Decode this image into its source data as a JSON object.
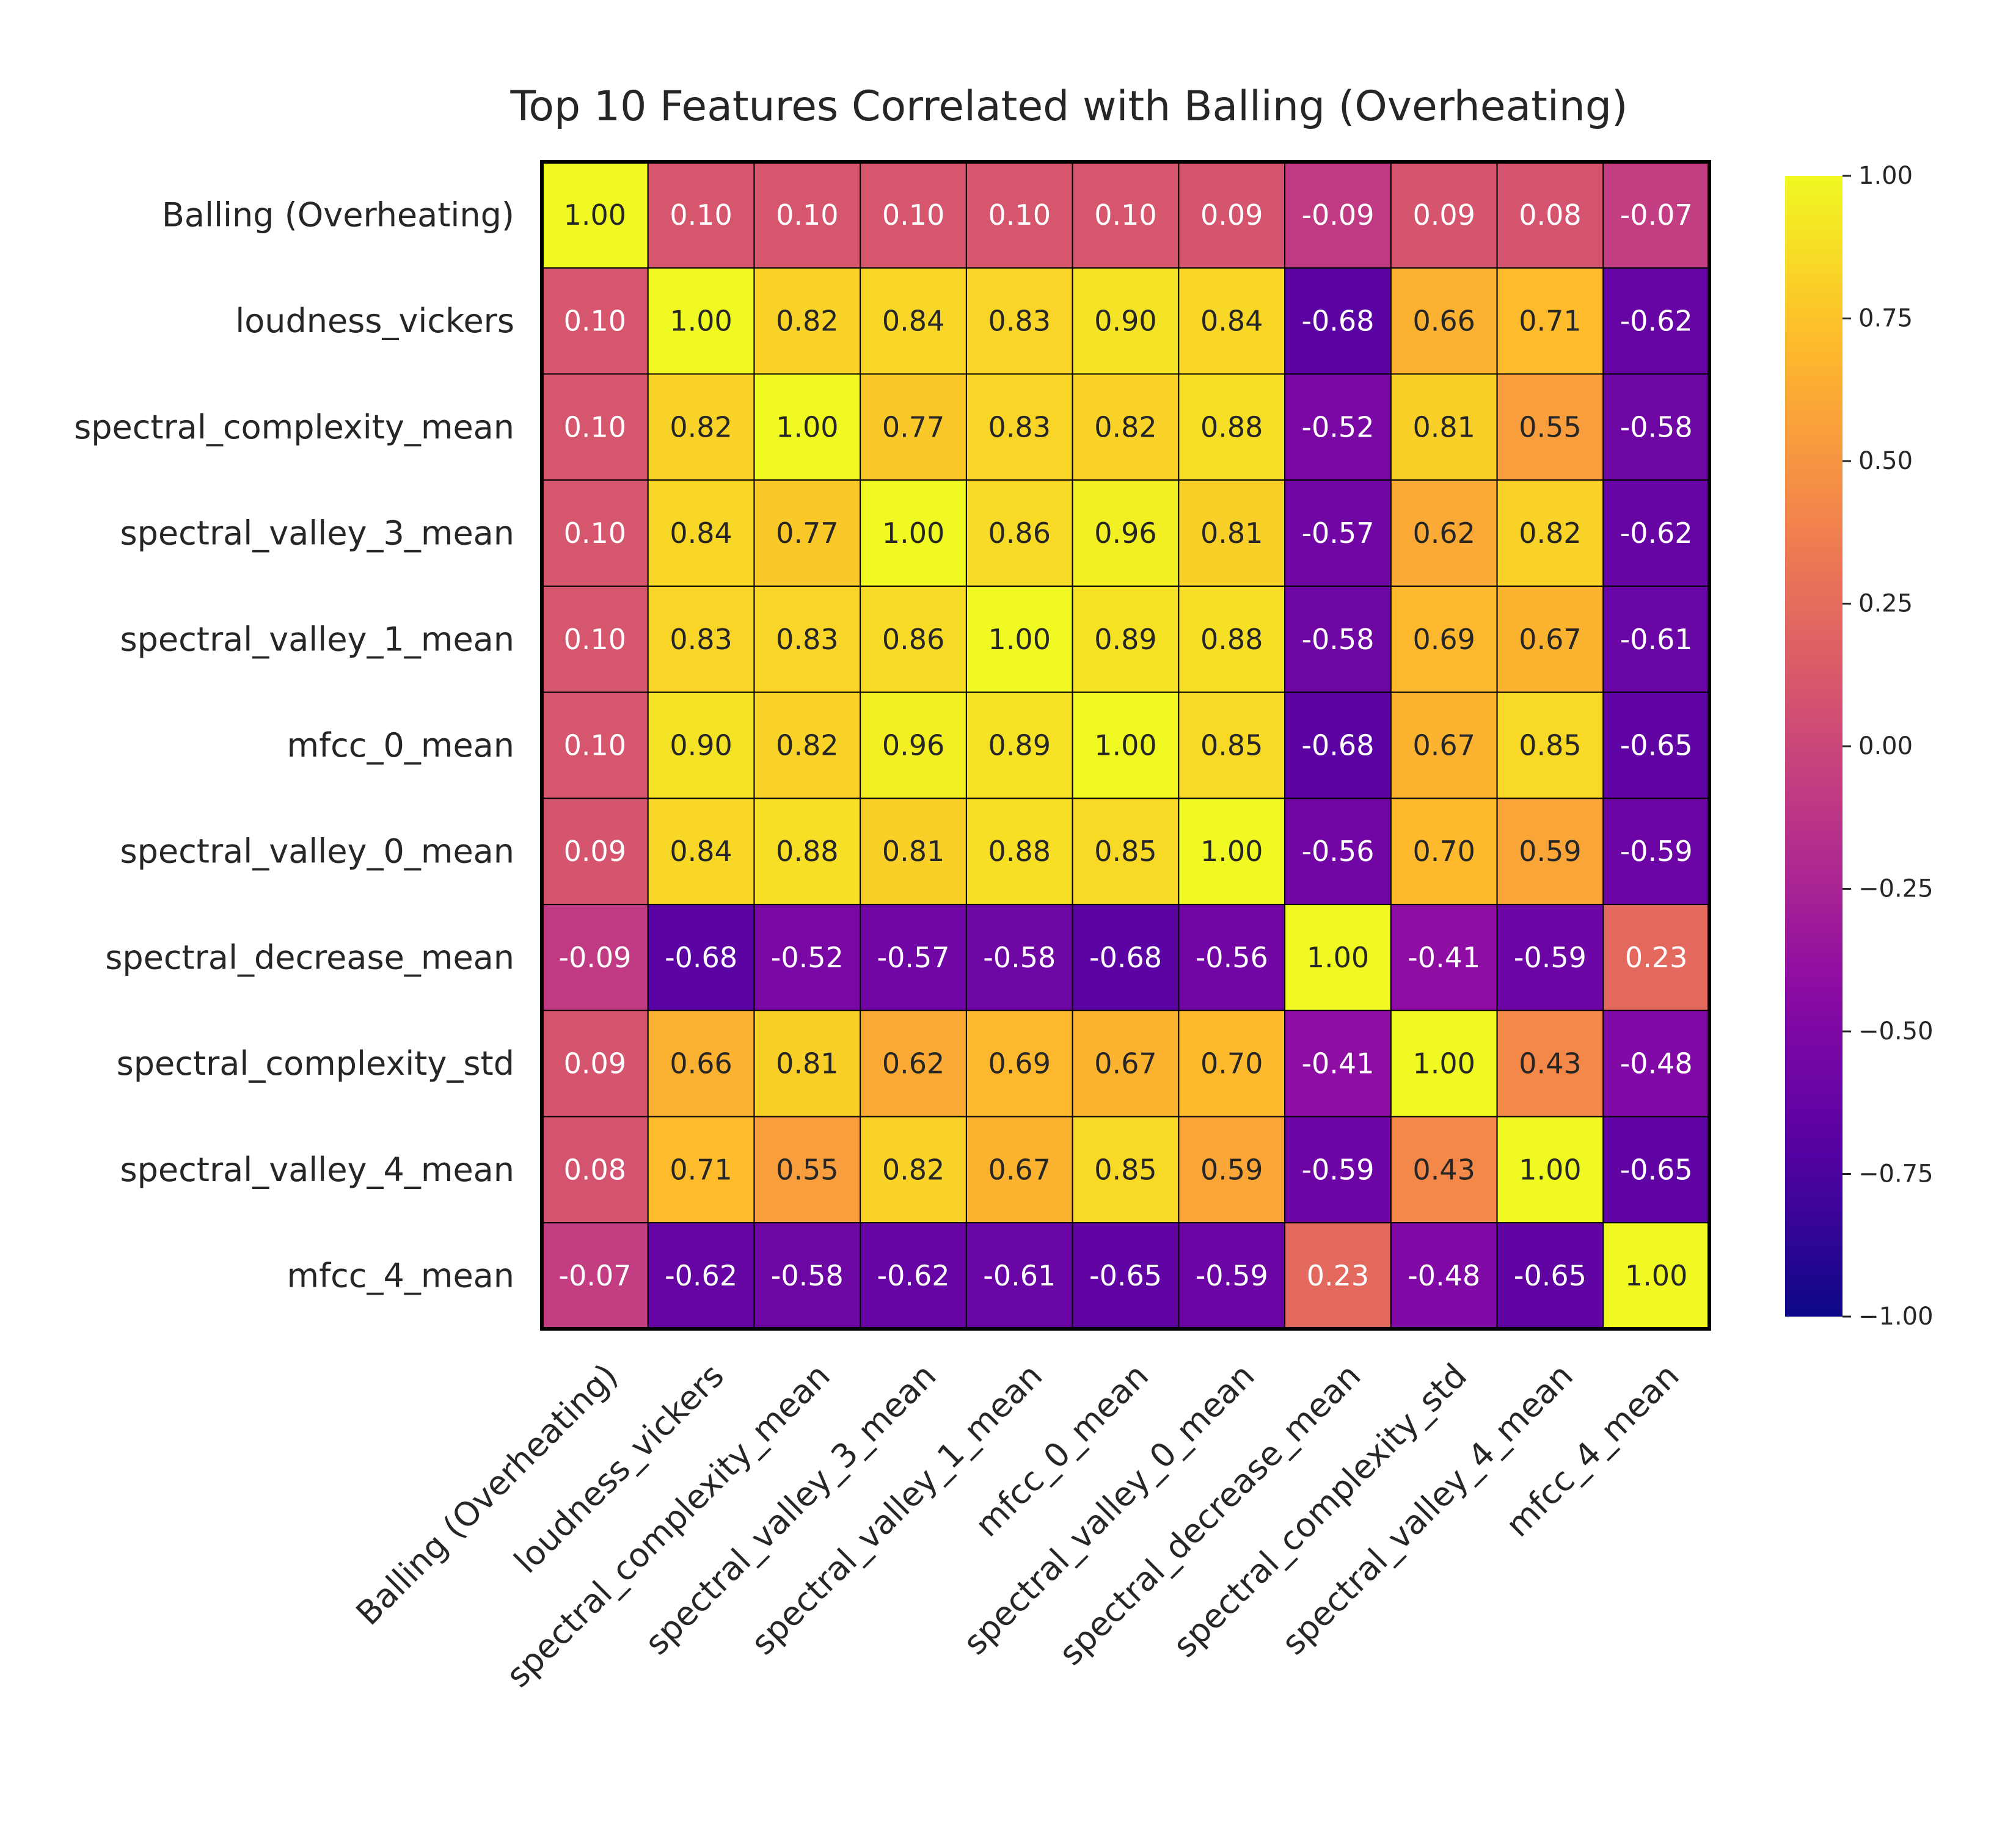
{
  "chart_data": {
    "type": "heatmap",
    "title": "Top 10 Features Correlated with Balling (Overheating)",
    "labels": [
      "Balling (Overheating)",
      "loudness_vickers",
      "spectral_complexity_mean",
      "spectral_valley_3_mean",
      "spectral_valley_1_mean",
      "mfcc_0_mean",
      "spectral_valley_0_mean",
      "spectral_decrease_mean",
      "spectral_complexity_std",
      "spectral_valley_4_mean",
      "mfcc_4_mean"
    ],
    "matrix": [
      [
        1.0,
        0.1,
        0.1,
        0.1,
        0.1,
        0.1,
        0.09,
        -0.09,
        0.09,
        0.08,
        -0.07
      ],
      [
        0.1,
        1.0,
        0.82,
        0.84,
        0.83,
        0.9,
        0.84,
        -0.68,
        0.66,
        0.71,
        -0.62
      ],
      [
        0.1,
        0.82,
        1.0,
        0.77,
        0.83,
        0.82,
        0.88,
        -0.52,
        0.81,
        0.55,
        -0.58
      ],
      [
        0.1,
        0.84,
        0.77,
        1.0,
        0.86,
        0.96,
        0.81,
        -0.57,
        0.62,
        0.82,
        -0.62
      ],
      [
        0.1,
        0.83,
        0.83,
        0.86,
        1.0,
        0.89,
        0.88,
        -0.58,
        0.69,
        0.67,
        -0.61
      ],
      [
        0.1,
        0.9,
        0.82,
        0.96,
        0.89,
        1.0,
        0.85,
        -0.68,
        0.67,
        0.85,
        -0.65
      ],
      [
        0.09,
        0.84,
        0.88,
        0.81,
        0.88,
        0.85,
        1.0,
        -0.56,
        0.7,
        0.59,
        -0.59
      ],
      [
        -0.09,
        -0.68,
        -0.52,
        -0.57,
        -0.58,
        -0.68,
        -0.56,
        1.0,
        -0.41,
        -0.59,
        0.23
      ],
      [
        0.09,
        0.66,
        0.81,
        0.62,
        0.69,
        0.67,
        0.7,
        -0.41,
        1.0,
        0.43,
        -0.48
      ],
      [
        0.08,
        0.71,
        0.55,
        0.82,
        0.67,
        0.85,
        0.59,
        -0.59,
        0.43,
        1.0,
        -0.65
      ],
      [
        -0.07,
        -0.62,
        -0.58,
        -0.62,
        -0.61,
        -0.65,
        -0.59,
        0.23,
        -0.48,
        -0.65,
        1.0
      ]
    ],
    "value_format": "2 decimals",
    "colormap": "plasma",
    "vmin": -1.0,
    "vmax": 1.0,
    "colorbar": {
      "ticks": [
        1.0,
        0.75,
        0.5,
        0.25,
        0.0,
        -0.25,
        -0.5,
        -0.75,
        -1.0
      ],
      "tick_labels": [
        "1.00",
        "0.75",
        "0.50",
        "0.25",
        "0.00",
        "−0.25",
        "−0.50",
        "−0.75",
        "−1.00"
      ],
      "placement": "right"
    },
    "x_tick_rotation_deg": 45,
    "colors": {
      "text_dark": "#262626",
      "text_light": "#ffffff",
      "cell_border": "#000000",
      "background": "#ffffff"
    }
  }
}
